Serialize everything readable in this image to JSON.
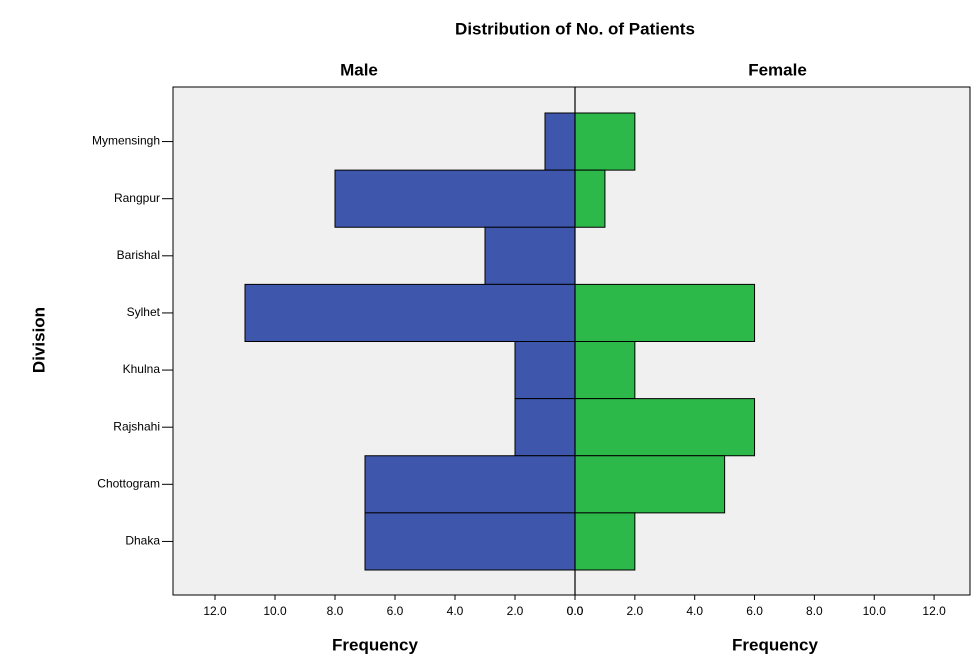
{
  "chart_data": {
    "type": "pyramid",
    "title": "Distribution of No. of Patients",
    "ylabel": "Division",
    "categories": [
      "Mymensingh",
      "Rangpur",
      "Barishal",
      "Sylhet",
      "Khulna",
      "Rajshahi",
      "Chottogram",
      "Dhaka"
    ],
    "grid": false,
    "series": [
      {
        "name": "Male",
        "color": "#3f56ad",
        "values": [
          1,
          8,
          3,
          11,
          2,
          2,
          7,
          7
        ],
        "xlabel": "Frequency",
        "xlim": [
          0,
          13.4
        ],
        "xticks": [
          {
            "value": 0,
            "label": "0.0"
          },
          {
            "value": 2,
            "label": "2.0"
          },
          {
            "value": 4,
            "label": "4.0"
          },
          {
            "value": 6,
            "label": "6.0"
          },
          {
            "value": 8,
            "label": "8.0"
          },
          {
            "value": 10,
            "label": "10.0"
          },
          {
            "value": 12,
            "label": "12.0"
          }
        ]
      },
      {
        "name": "Female",
        "color": "#2db84a",
        "values": [
          2,
          1,
          0,
          6,
          2,
          6,
          5,
          2
        ],
        "xlabel": "Frequency",
        "xlim": [
          0,
          13.2
        ],
        "xticks": [
          {
            "value": 0,
            "label": "0.0"
          },
          {
            "value": 2,
            "label": "2.0"
          },
          {
            "value": 4,
            "label": "4.0"
          },
          {
            "value": 6,
            "label": "6.0"
          },
          {
            "value": 8,
            "label": "8.0"
          },
          {
            "value": 10,
            "label": "10.0"
          },
          {
            "value": 12,
            "label": "12.0"
          }
        ]
      }
    ]
  }
}
